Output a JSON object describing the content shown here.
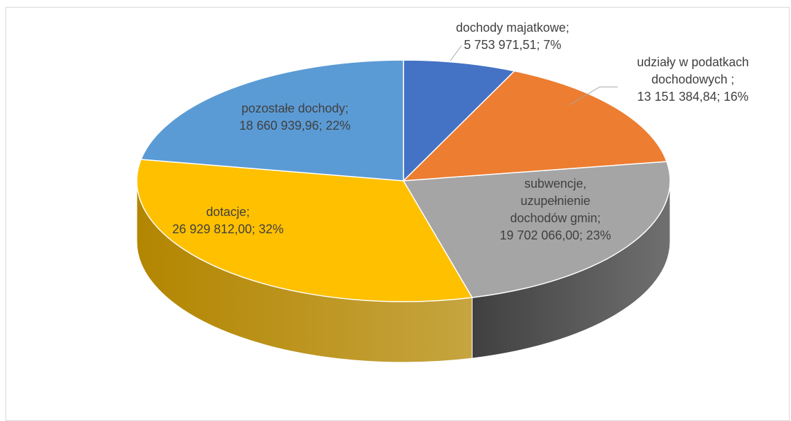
{
  "chart_data": {
    "type": "pie",
    "three_d": true,
    "title": "",
    "slices": [
      {
        "label": "dochody majatkowe;",
        "value_text": "5 753 971,51; 7%",
        "value": 5753971.51,
        "percent": 7,
        "color": "#4472c4",
        "side_color": "#2f5597"
      },
      {
        "label": "udziały w podatkach dochodowych ;",
        "value_text": "13 151 384,84; 16%",
        "value": 13151384.84,
        "percent": 16,
        "color": "#ed7d31",
        "side_color": "#a9551c"
      },
      {
        "label": "subwencje, uzupełnienie dochodów gmin;",
        "value_text": "19 702 066,00; 23%",
        "value": 19702066.0,
        "percent": 23,
        "color": "#a5a5a5",
        "side_color": "#404040"
      },
      {
        "label": "dotacje;",
        "value_text": "26 929 812,00; 32%",
        "value": 26929812.0,
        "percent": 32,
        "color": "#ffc000",
        "side_color": "#b38600"
      },
      {
        "label": "pozostałe dochody;",
        "value_text": "18 660 939,96; 22%",
        "value": 18660939.96,
        "percent": 22,
        "color": "#5b9bd5",
        "side_color": "#3e75a8"
      }
    ],
    "data_label_lines": [
      [
        "dochody majatkowe;",
        "5 753 971,51; 7%"
      ],
      [
        "udziały w podatkach",
        "dochodowych ;",
        "13 151 384,84; 16%"
      ],
      [
        "subwencje,",
        "uzupełnienie",
        "dochodów gmin;",
        "19 702 066,00; 23%"
      ],
      [
        "dotacje;",
        "26 929 812,00; 32%"
      ],
      [
        "pozostałe dochody;",
        "18 660 939,96; 22%"
      ]
    ],
    "legend": "none",
    "grid": false,
    "leader_line_color": "#a6a6a6"
  }
}
